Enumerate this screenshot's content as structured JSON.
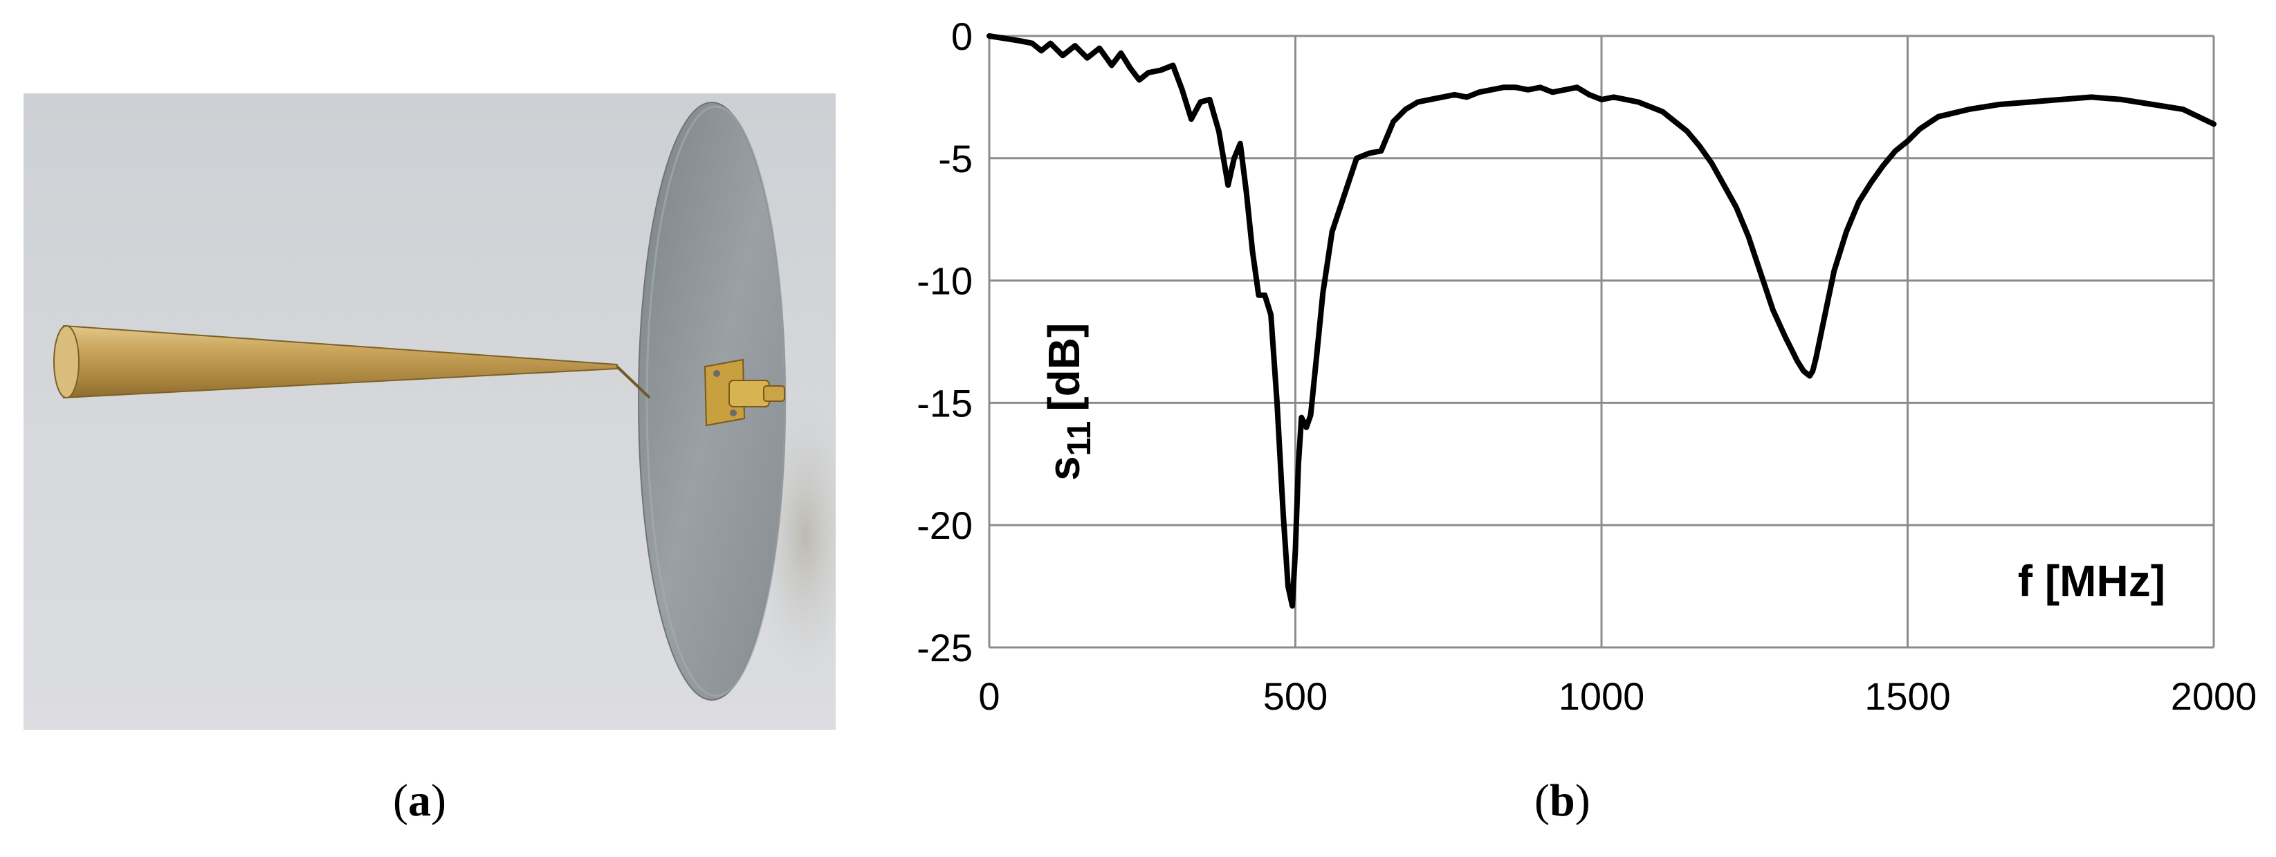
{
  "panels": {
    "a": {
      "caption_open": "(",
      "caption_letter": "a",
      "caption_close": ")"
    },
    "b": {
      "caption_open": "(",
      "caption_letter": "b",
      "caption_close": ")"
    }
  },
  "photo": {
    "subject": "brass-cone-antenna-on-metal-disc-ground-plane",
    "colors": {
      "wall": "#c9ccd0",
      "brass": "#c9a45a",
      "disc": "#8e9499",
      "connector": "#c8a040"
    }
  },
  "chart_data": {
    "type": "line",
    "ylabel_main": "s",
    "ylabel_sub": "11",
    "ylabel_unit": "[dB]",
    "xlabel": "f [MHz]",
    "xlim": [
      0,
      2000
    ],
    "ylim": [
      -25,
      0
    ],
    "xticks": [
      0,
      500,
      1000,
      1500,
      2000
    ],
    "yticks": [
      0,
      -5,
      -10,
      -15,
      -20,
      -25
    ],
    "grid": true,
    "line_color": "#000000",
    "series": [
      {
        "x": [
          0,
          25,
          50,
          70,
          85,
          100,
          120,
          140,
          160,
          180,
          200,
          215,
          230,
          245,
          260,
          280,
          300,
          315,
          330,
          345,
          360,
          375,
          390,
          400,
          410,
          420,
          430,
          440,
          450,
          460,
          470,
          480,
          488,
          495,
          500,
          505,
          510,
          518,
          525,
          535,
          545,
          560,
          580,
          600,
          620,
          640,
          660,
          680,
          700,
          720,
          740,
          760,
          780,
          800,
          820,
          840,
          860,
          880,
          900,
          920,
          940,
          960,
          980,
          1000,
          1020,
          1040,
          1060,
          1080,
          1100,
          1120,
          1140,
          1160,
          1180,
          1200,
          1220,
          1240,
          1260,
          1280,
          1300,
          1310,
          1320,
          1330,
          1340,
          1345,
          1350,
          1360,
          1370,
          1380,
          1400,
          1420,
          1440,
          1460,
          1480,
          1500,
          1520,
          1550,
          1600,
          1650,
          1700,
          1750,
          1800,
          1850,
          1900,
          1950,
          2000
        ],
        "y": [
          0,
          -0.1,
          -0.2,
          -0.3,
          -0.6,
          -0.3,
          -0.8,
          -0.4,
          -0.9,
          -0.5,
          -1.2,
          -0.7,
          -1.3,
          -1.8,
          -1.5,
          -1.4,
          -1.2,
          -2.2,
          -3.4,
          -2.7,
          -2.6,
          -3.9,
          -6.1,
          -5.0,
          -4.4,
          -6.4,
          -8.8,
          -10.6,
          -10.6,
          -11.4,
          -15.0,
          -19.5,
          -22.5,
          -23.3,
          -21.0,
          -17.5,
          -15.6,
          -16.0,
          -15.5,
          -13.0,
          -10.5,
          -8.0,
          -6.5,
          -5.0,
          -4.8,
          -4.7,
          -3.5,
          -3.0,
          -2.7,
          -2.6,
          -2.5,
          -2.4,
          -2.5,
          -2.3,
          -2.2,
          -2.1,
          -2.1,
          -2.2,
          -2.1,
          -2.3,
          -2.2,
          -2.1,
          -2.4,
          -2.6,
          -2.5,
          -2.6,
          -2.7,
          -2.9,
          -3.1,
          -3.5,
          -3.9,
          -4.5,
          -5.2,
          -6.1,
          -7.0,
          -8.2,
          -9.7,
          -11.2,
          -12.3,
          -12.8,
          -13.3,
          -13.7,
          -13.9,
          -13.7,
          -13.2,
          -12.0,
          -10.8,
          -9.6,
          -8.0,
          -6.8,
          -6.0,
          -5.3,
          -4.7,
          -4.3,
          -3.8,
          -3.3,
          -3.0,
          -2.8,
          -2.7,
          -2.6,
          -2.5,
          -2.6,
          -2.8,
          -3.0,
          -3.6
        ]
      }
    ]
  }
}
